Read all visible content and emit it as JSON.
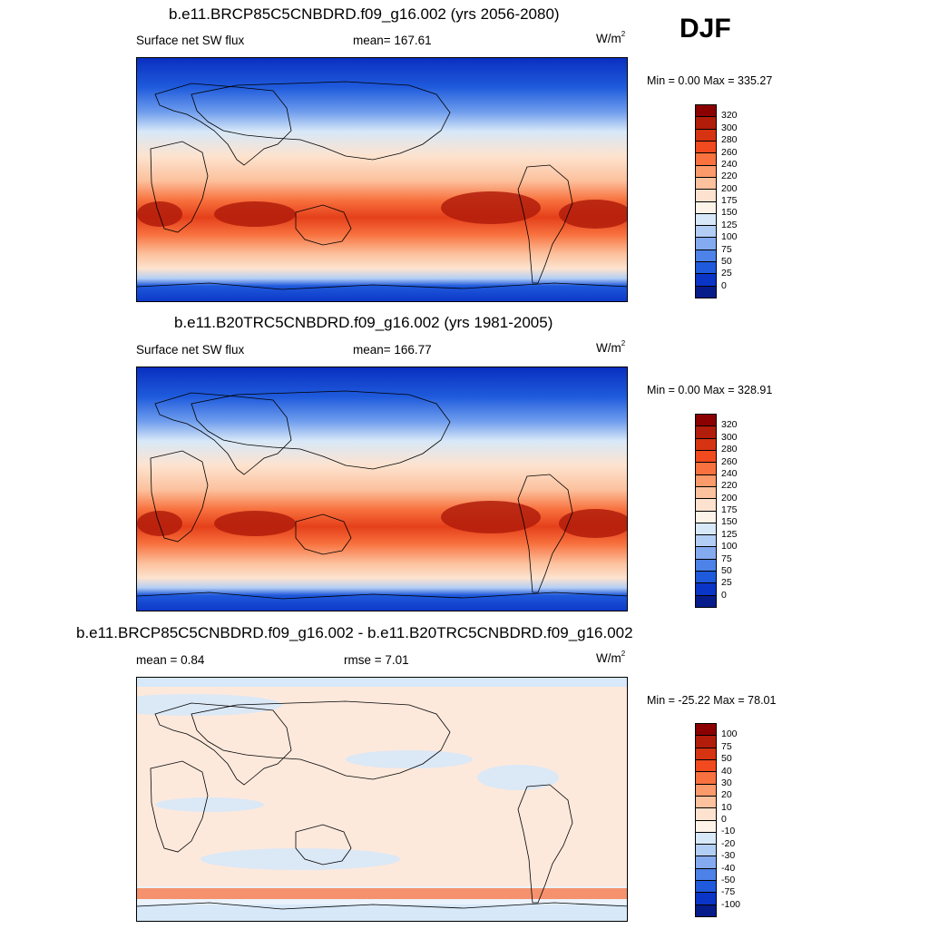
{
  "season": "DJF",
  "panels": [
    {
      "title": "b.e11.BRCP85C5CNBDRD.f09_g16.002 (yrs 2056-2080)",
      "left_label": "Surface net SW flux",
      "center_label": "mean= 167.61",
      "units_base": "W/m",
      "units_exp": "2",
      "minmax": "Min =   0.00 Max = 335.27",
      "colorbar_labels": [
        "320",
        "300",
        "280",
        "260",
        "240",
        "220",
        "200",
        "175",
        "150",
        "125",
        "100",
        "75",
        "50",
        "25",
        "0"
      ],
      "colorbar_colors": [
        "#8b0000",
        "#b21c0a",
        "#d63312",
        "#f04a1e",
        "#f8713e",
        "#fb9a6a",
        "#fcc19d",
        "#fde3cf",
        "#fdf3e8",
        "#d7e8f8",
        "#b3cef5",
        "#84abf0",
        "#4d82e8",
        "#1f59dc",
        "#0a35c6",
        "#061c8a"
      ],
      "map_kind": "flux",
      "chart_data": {
        "type": "heatmap",
        "title": "b.e11.BRCP85C5CNBDRD.f09_g16.002 (yrs 2056-2080)",
        "variable": "Surface net SW flux",
        "units": "W/m2",
        "mean": 167.61,
        "min": 0.0,
        "max": 335.27,
        "levels": [
          0,
          25,
          50,
          75,
          100,
          125,
          150,
          175,
          200,
          220,
          240,
          260,
          280,
          300,
          320
        ]
      }
    },
    {
      "title": "b.e11.B20TRC5CNBDRD.f09_g16.002 (yrs 1981-2005)",
      "left_label": "Surface net SW flux",
      "center_label": "mean= 166.77",
      "units_base": "W/m",
      "units_exp": "2",
      "minmax": "Min =   0.00 Max = 328.91",
      "colorbar_labels": [
        "320",
        "300",
        "280",
        "260",
        "240",
        "220",
        "200",
        "175",
        "150",
        "125",
        "100",
        "75",
        "50",
        "25",
        "0"
      ],
      "colorbar_colors": [
        "#8b0000",
        "#b21c0a",
        "#d63312",
        "#f04a1e",
        "#f8713e",
        "#fb9a6a",
        "#fcc19d",
        "#fde3cf",
        "#fdf3e8",
        "#d7e8f8",
        "#b3cef5",
        "#84abf0",
        "#4d82e8",
        "#1f59dc",
        "#0a35c6",
        "#061c8a"
      ],
      "map_kind": "flux",
      "chart_data": {
        "type": "heatmap",
        "title": "b.e11.B20TRC5CNBDRD.f09_g16.002 (yrs 1981-2005)",
        "variable": "Surface net SW flux",
        "units": "W/m2",
        "mean": 166.77,
        "min": 0.0,
        "max": 328.91,
        "levels": [
          0,
          25,
          50,
          75,
          100,
          125,
          150,
          175,
          200,
          220,
          240,
          260,
          280,
          300,
          320
        ]
      }
    },
    {
      "title": "b.e11.BRCP85C5CNBDRD.f09_g16.002 - b.e11.B20TRC5CNBDRD.f09_g16.002",
      "left_label": "mean =   0.84",
      "center_label": "rmse =   7.01",
      "units_base": "W/m",
      "units_exp": "2",
      "minmax": "Min = -25.22 Max =  78.01",
      "colorbar_labels": [
        "100",
        "75",
        "50",
        "40",
        "30",
        "20",
        "10",
        "0",
        "-10",
        "-20",
        "-30",
        "-40",
        "-50",
        "-75",
        "-100"
      ],
      "colorbar_colors": [
        "#8b0000",
        "#b21c0a",
        "#d63312",
        "#f04a1e",
        "#f8713e",
        "#fb9a6a",
        "#fcc19d",
        "#fde3cf",
        "#fdf3e8",
        "#d7e8f8",
        "#b3cef5",
        "#84abf0",
        "#4d82e8",
        "#1f59dc",
        "#0a35c6",
        "#061c8a"
      ],
      "map_kind": "diff",
      "chart_data": {
        "type": "heatmap",
        "title": "b.e11.BRCP85C5CNBDRD.f09_g16.002 - b.e11.B20TRC5CNBDRD.f09_g16.002",
        "units": "W/m2",
        "mean": 0.84,
        "rmse": 7.01,
        "min": -25.22,
        "max": 78.01,
        "levels": [
          -100,
          -75,
          -50,
          -40,
          -30,
          -20,
          -10,
          0,
          10,
          20,
          30,
          40,
          50,
          75,
          100
        ]
      }
    }
  ]
}
